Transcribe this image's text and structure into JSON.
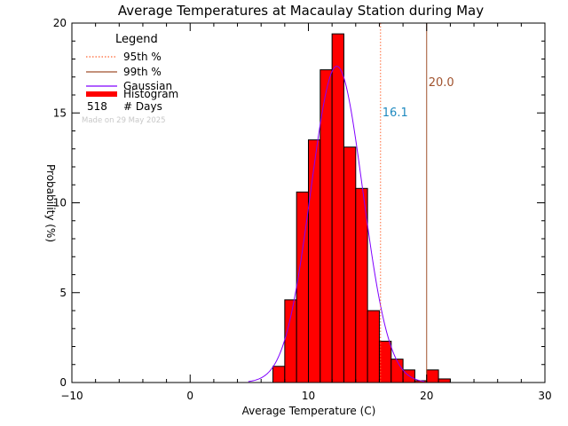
{
  "chart_data": {
    "type": "bar",
    "title": "Average Temperatures at Macaulay Station during May",
    "xlabel": "Average Temperature (C)",
    "ylabel": "Probability  (%)",
    "xlim": [
      -10,
      30
    ],
    "ylim": [
      0,
      20
    ],
    "xticks": [
      -10,
      0,
      10,
      20,
      30
    ],
    "yticks": [
      0,
      5,
      10,
      15,
      20
    ],
    "bin_width": 1,
    "histogram": {
      "name": "Histogram",
      "color": "#ff0000",
      "bins": [
        {
          "x": 7,
          "y": 0.9
        },
        {
          "x": 8,
          "y": 4.6
        },
        {
          "x": 9,
          "y": 10.6
        },
        {
          "x": 10,
          "y": 13.5
        },
        {
          "x": 11,
          "y": 17.4
        },
        {
          "x": 12,
          "y": 19.4
        },
        {
          "x": 13,
          "y": 13.1
        },
        {
          "x": 14,
          "y": 10.8
        },
        {
          "x": 15,
          "y": 4.0
        },
        {
          "x": 16,
          "y": 2.3
        },
        {
          "x": 17,
          "y": 1.3
        },
        {
          "x": 18,
          "y": 0.7
        },
        {
          "x": 19,
          "y": 0.1
        },
        {
          "x": 20,
          "y": 0.7
        },
        {
          "x": 21,
          "y": 0.2
        }
      ]
    },
    "gaussian": {
      "name": "Gaussian",
      "color": "#8000ff",
      "mean": 12.4,
      "sigma": 2.2,
      "peak": 17.6
    },
    "percentiles": [
      {
        "name": "95th %",
        "value": 16.1,
        "label": "16.1",
        "color": "#ff6633",
        "label_color": "#1f8ac0",
        "style": "dotted"
      },
      {
        "name": "99th %",
        "value": 20.0,
        "label": "20.0",
        "color": "#a0522d",
        "label_color": "#a0522d",
        "style": "solid"
      }
    ],
    "legend": {
      "title": "Legend",
      "days_count": "518",
      "days_label": "# Days",
      "placement": "top-left"
    },
    "made_on": "Made on 29 May 2025"
  }
}
